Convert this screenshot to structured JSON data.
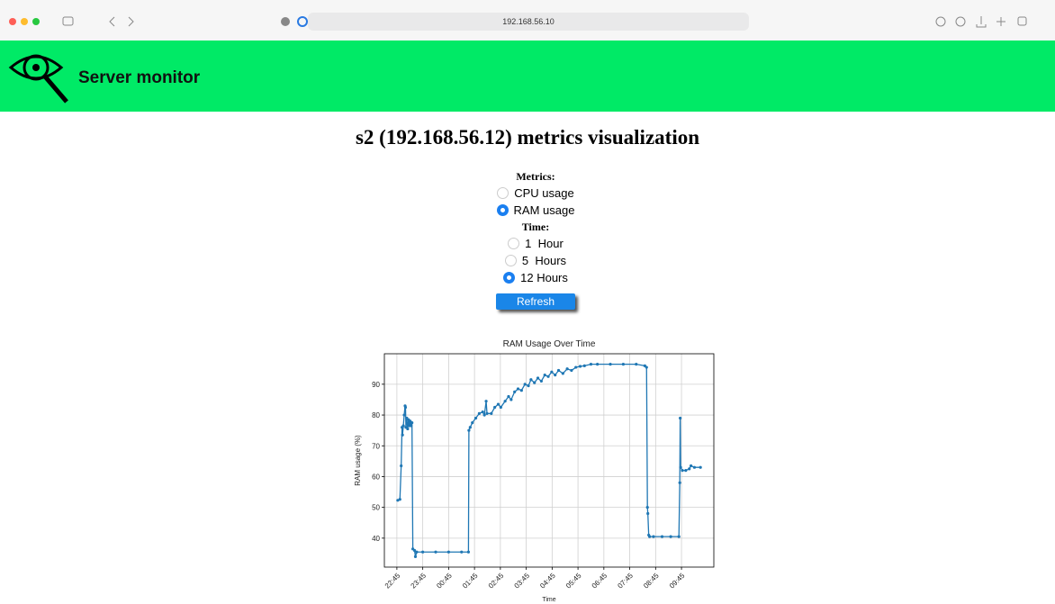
{
  "browser": {
    "url": "192.168.56.10"
  },
  "header": {
    "title": "Server monitor"
  },
  "page_title": "s2 (192.168.56.12) metrics visualization",
  "form": {
    "metrics_label": "Metrics:",
    "metrics": [
      {
        "label": "CPU usage",
        "checked": false
      },
      {
        "label": "RAM usage",
        "checked": true
      }
    ],
    "time_label": "Time:",
    "times": [
      {
        "label": "1  Hour",
        "checked": false
      },
      {
        "label": "5  Hours",
        "checked": false
      },
      {
        "label": "12 Hours",
        "checked": true
      }
    ],
    "button": "Refresh"
  },
  "chart_data": {
    "type": "line",
    "title": "RAM Usage Over Time",
    "x_label": "Time",
    "y_label": "RAM usage (%)",
    "color": "#1f77b4",
    "grid": true,
    "x": [
      "22:47",
      "22:52",
      "22:55",
      "22:57",
      "22:58",
      "23:00",
      "23:02",
      "23:04",
      "23:05",
      "23:06",
      "23:08",
      "23:10",
      "23:12",
      "23:14",
      "23:16",
      "23:18",
      "23:20",
      "23:22",
      "23:26",
      "23:28",
      "23:31",
      "23:45",
      "00:15",
      "00:45",
      "01:15",
      "01:31",
      "01:32",
      "01:35",
      "01:40",
      "01:48",
      "01:56",
      "02:04",
      "02:08",
      "02:12",
      "02:14",
      "02:24",
      "02:32",
      "02:40",
      "02:46",
      "02:56",
      "03:04",
      "03:10",
      "03:18",
      "03:26",
      "03:34",
      "03:42",
      "03:50",
      "03:56",
      "04:04",
      "04:12",
      "04:20",
      "04:28",
      "04:36",
      "04:44",
      "04:52",
      "05:00",
      "05:10",
      "05:20",
      "05:30",
      "05:40",
      "05:50",
      "06:00",
      "06:15",
      "06:30",
      "07:00",
      "07:30",
      "08:00",
      "08:20",
      "08:24",
      "08:26",
      "08:27",
      "08:29",
      "08:31",
      "08:40",
      "09:00",
      "09:20",
      "09:39",
      "09:41",
      "09:42",
      "09:43",
      "09:47",
      "09:55",
      "10:03",
      "10:07",
      "10:15",
      "10:29"
    ],
    "values": [
      52.3,
      52.6,
      63.5,
      76,
      73.5,
      76.5,
      80,
      83,
      82.5,
      76,
      79,
      75.5,
      78.5,
      76.5,
      78,
      76.5,
      77.5,
      36.5,
      36,
      34,
      35.5,
      35.5,
      35.5,
      35.5,
      35.5,
      35.5,
      75,
      76,
      77.5,
      79,
      80.5,
      81,
      80,
      84.5,
      80.5,
      80.5,
      82.5,
      83.5,
      82.5,
      84.5,
      86,
      85,
      87.5,
      88.5,
      88,
      90,
      89.5,
      91.5,
      90.5,
      92,
      91,
      93,
      92.5,
      94,
      93,
      94.5,
      93.5,
      95,
      94.5,
      95.5,
      95.8,
      96,
      96.5,
      96.5,
      96.5,
      96.5,
      96.5,
      96,
      95.5,
      50,
      48,
      41,
      40.5,
      40.5,
      40.5,
      40.5,
      40.5,
      58,
      79,
      63,
      62,
      62,
      62.5,
      63.5,
      63,
      63
    ],
    "xlim": [
      "22:16",
      "11:00"
    ],
    "xticks": [
      "22:45",
      "23:45",
      "00:45",
      "01:45",
      "02:45",
      "03:45",
      "04:45",
      "05:45",
      "06:45",
      "07:45",
      "08:45",
      "09:45"
    ],
    "ylim": [
      30.6,
      99.9
    ],
    "yticks": [
      40,
      50,
      60,
      70,
      80,
      90
    ]
  }
}
